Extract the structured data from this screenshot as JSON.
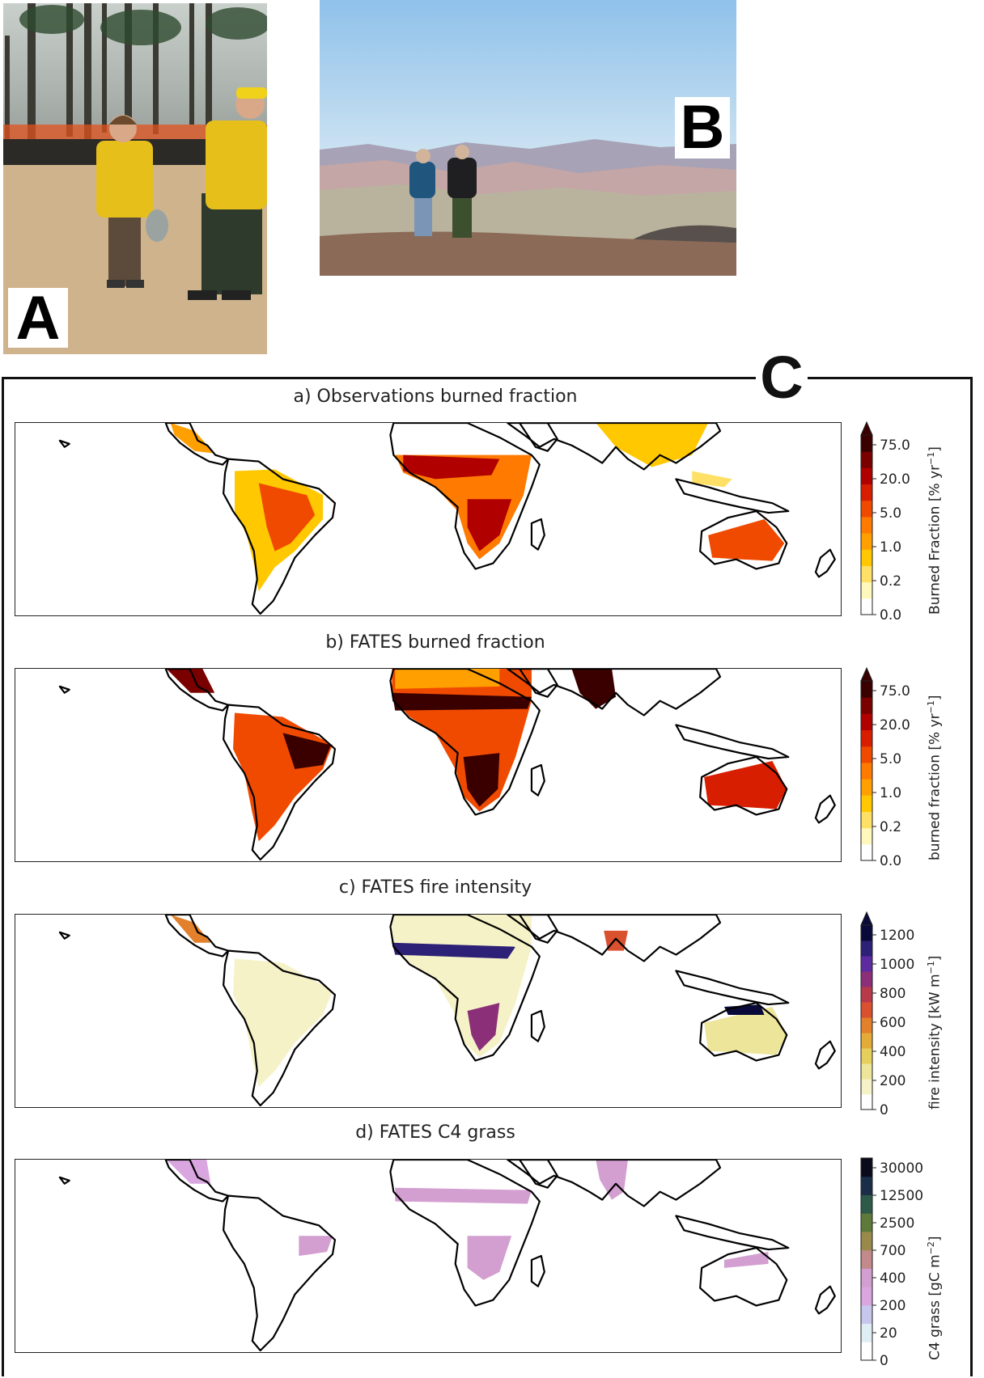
{
  "panels": {
    "a_letter": "A",
    "b_letter": "B",
    "c_letter": "C"
  },
  "photo_a": {
    "description_icon": "firefighters-in-forest-photo"
  },
  "photo_b": {
    "description_icon": "two-people-on-mountain-overlook-photo"
  },
  "maps": [
    {
      "title": "a) Observations burned fraction",
      "colorbar_label": "Burned Fraction [% yr",
      "colorbar_sup": "−1",
      "colorbar_suffix": "]",
      "ticks": [
        "75.0",
        "20.0",
        "5.0",
        "1.0",
        "0.2",
        "0.0"
      ],
      "colors": [
        "#ffffff",
        "#fff7bc",
        "#ffe066",
        "#ffc800",
        "#ffa000",
        "#ff7a00",
        "#f04a00",
        "#d81e00",
        "#b00000",
        "#7a0000",
        "#3a0000"
      ],
      "extend_top": true
    },
    {
      "title": "b) FATES burned fraction",
      "colorbar_label": "burned fraction [% yr",
      "colorbar_sup": "−1",
      "colorbar_suffix": "]",
      "ticks": [
        "75.0",
        "20.0",
        "5.0",
        "1.0",
        "0.2",
        "0.0"
      ],
      "colors": [
        "#ffffff",
        "#fff7bc",
        "#ffe066",
        "#ffc800",
        "#ffa000",
        "#ff7a00",
        "#f04a00",
        "#d81e00",
        "#b00000",
        "#7a0000",
        "#3a0000"
      ],
      "extend_top": true
    },
    {
      "title": "c) FATES fire intensity",
      "colorbar_label": "fire intensity [kW m",
      "colorbar_sup": "−1",
      "colorbar_suffix": "]",
      "ticks": [
        "1200",
        "1000",
        "800",
        "600",
        "400",
        "200",
        "0"
      ],
      "colors": [
        "#ffffff",
        "#f6f2c8",
        "#ece59a",
        "#e6cf5c",
        "#e3ab38",
        "#e3802b",
        "#d9512e",
        "#b83a4a",
        "#8a2f78",
        "#5d2aa0",
        "#2c2077",
        "#0a0a3a"
      ],
      "extend_top": true
    },
    {
      "title": "d) FATES C4 grass",
      "colorbar_label": "C4 grass [gC m",
      "colorbar_sup": "−2",
      "colorbar_suffix": "]",
      "ticks": [
        "30000",
        "12500",
        "2500",
        "700",
        "400",
        "200",
        "20",
        "0"
      ],
      "colors": [
        "#ffffff",
        "#dfeef5",
        "#c7c7ee",
        "#d9a6e0",
        "#d39ed0",
        "#c28a8a",
        "#9a8a4a",
        "#5e7a3a",
        "#2e5a4a",
        "#1a2e4a",
        "#0a0a1a"
      ],
      "extend_top": false
    }
  ]
}
